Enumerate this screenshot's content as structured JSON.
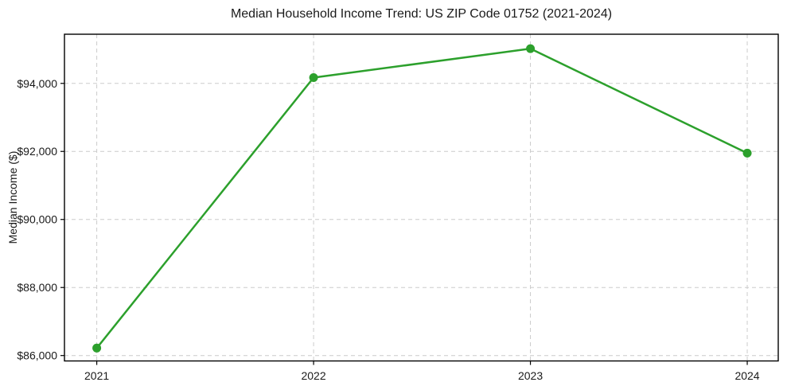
{
  "chart_data": {
    "type": "line",
    "title": "Median Household Income Trend: US ZIP Code 01752 (2021-2024)",
    "xlabel": "",
    "ylabel": "Median Income ($)",
    "x": [
      2021,
      2022,
      2023,
      2024
    ],
    "series": [
      {
        "name": "Median Household Income",
        "values": [
          86220,
          94170,
          95020,
          91950
        ]
      }
    ],
    "x_tick_labels": [
      "2021",
      "2022",
      "2023",
      "2024"
    ],
    "y_ticks": [
      86000,
      88000,
      90000,
      92000,
      94000
    ],
    "y_tick_labels": [
      "$86,000",
      "$88,000",
      "$90,000",
      "$92,000",
      "$94,000"
    ],
    "xlim": [
      2020.851,
      2024.143
    ],
    "ylim": [
      85841,
      95445
    ],
    "grid": true,
    "grid_style": "dashed",
    "legend": "none",
    "line_color": "#2ca02c",
    "marker": "circle",
    "marker_size": 5.5,
    "line_width": 2.5,
    "background_color": "#ffffff",
    "text_color": "#1a1a1a",
    "grid_color": "#cccccc",
    "spine_color": "#000000"
  }
}
